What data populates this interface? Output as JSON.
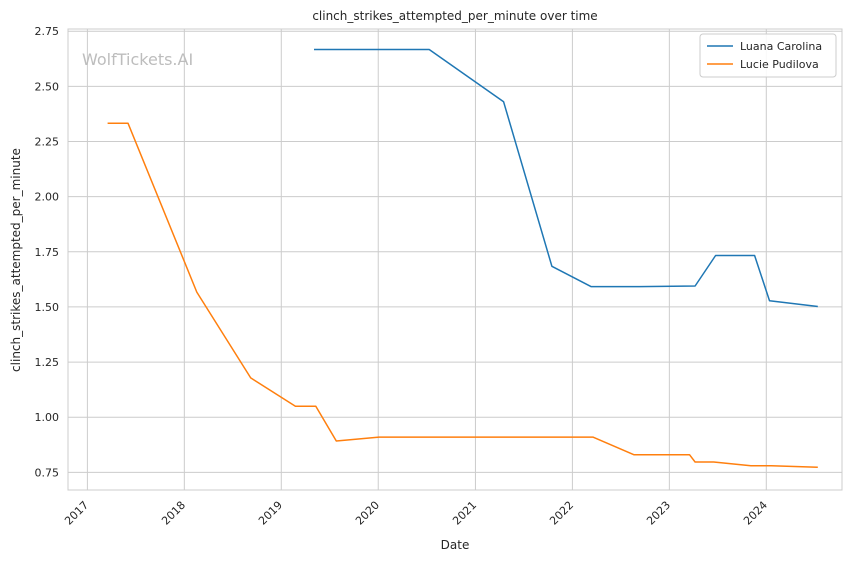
{
  "chart_data": {
    "type": "line",
    "title": "clinch_strikes_attempted_per_minute over time",
    "xlabel": "Date",
    "ylabel": "clinch_strikes_attempted_per_minute",
    "watermark": "WolfTickets.AI",
    "xlim": [
      "2016-10-20",
      "2024-10-12"
    ],
    "ylim": [
      0.67,
      2.76
    ],
    "x_ticks": [
      "2017",
      "2018",
      "2019",
      "2020",
      "2021",
      "2022",
      "2023",
      "2024"
    ],
    "y_ticks": [
      "0.75",
      "1.00",
      "1.25",
      "1.50",
      "1.75",
      "2.00",
      "2.25",
      "2.50",
      "2.75"
    ],
    "grid": true,
    "legend_position": "top-right",
    "series": [
      {
        "name": "Luana Carolina",
        "color": "#1f77b4",
        "points": [
          {
            "x": "2019-05-04",
            "y": 2.667
          },
          {
            "x": "2020-07-11",
            "y": 2.667
          },
          {
            "x": "2021-04-17",
            "y": 2.43
          },
          {
            "x": "2021-10-16",
            "y": 1.684
          },
          {
            "x": "2022-03-12",
            "y": 1.592
          },
          {
            "x": "2022-09-10",
            "y": 1.592
          },
          {
            "x": "2023-04-08",
            "y": 1.595
          },
          {
            "x": "2023-06-24",
            "y": 1.733
          },
          {
            "x": "2023-11-18",
            "y": 1.733
          },
          {
            "x": "2024-01-13",
            "y": 1.528
          },
          {
            "x": "2024-07-13",
            "y": 1.502
          }
        ]
      },
      {
        "name": "Lucie Pudilova",
        "color": "#ff7f0e",
        "points": [
          {
            "x": "2017-03-18",
            "y": 2.333
          },
          {
            "x": "2017-06-03",
            "y": 2.333
          },
          {
            "x": "2018-02-17",
            "y": 1.567
          },
          {
            "x": "2018-09-08",
            "y": 1.178
          },
          {
            "x": "2019-02-23",
            "y": 1.05
          },
          {
            "x": "2019-05-11",
            "y": 1.05
          },
          {
            "x": "2019-07-27",
            "y": 0.892
          },
          {
            "x": "2020-01-04",
            "y": 0.91
          },
          {
            "x": "2022-03-19",
            "y": 0.91
          },
          {
            "x": "2022-08-20",
            "y": 0.83
          },
          {
            "x": "2023-03-18",
            "y": 0.83
          },
          {
            "x": "2023-04-08",
            "y": 0.797
          },
          {
            "x": "2023-06-17",
            "y": 0.797
          },
          {
            "x": "2023-11-04",
            "y": 0.78
          },
          {
            "x": "2024-01-20",
            "y": 0.78
          },
          {
            "x": "2024-07-13",
            "y": 0.773
          }
        ]
      }
    ]
  }
}
